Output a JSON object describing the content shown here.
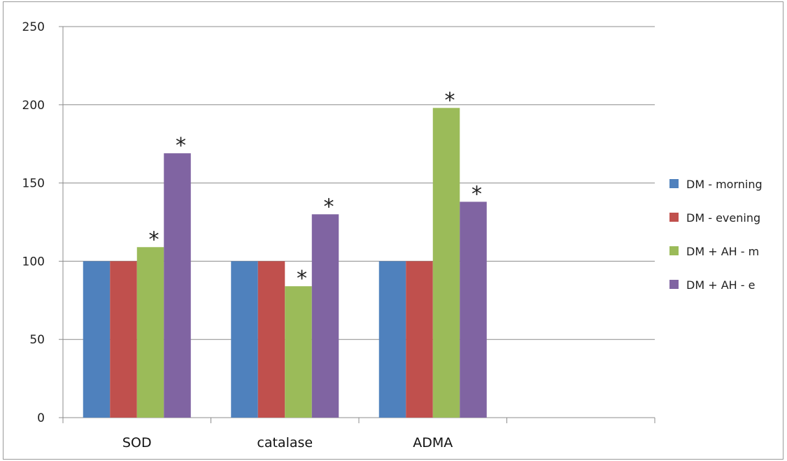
{
  "chart_data": {
    "type": "bar",
    "categories": [
      "SOD",
      "catalase",
      "ADMA",
      ""
    ],
    "series": [
      {
        "name": "DM - morning",
        "color": "#4f81bd",
        "values": [
          100,
          100,
          100,
          null
        ],
        "annotations": [
          "",
          "",
          "",
          ""
        ]
      },
      {
        "name": "DM - evening",
        "color": "#c0504d",
        "values": [
          100,
          100,
          100,
          null
        ],
        "annotations": [
          "",
          "",
          "",
          ""
        ]
      },
      {
        "name": "DM + AH - m",
        "color": "#9bbb59",
        "values": [
          109,
          84,
          198,
          null
        ],
        "annotations": [
          "*",
          "*",
          "*",
          ""
        ]
      },
      {
        "name": "DM + AH - e",
        "color": "#8064a2",
        "values": [
          169,
          130,
          138,
          null
        ],
        "annotations": [
          "*",
          "*",
          "*",
          ""
        ]
      }
    ],
    "yticks": [
      0,
      50,
      100,
      150,
      200,
      250
    ],
    "ylim": [
      0,
      250
    ],
    "grid": true,
    "legend": "right",
    "title": "",
    "xlabel": "",
    "ylabel": ""
  }
}
